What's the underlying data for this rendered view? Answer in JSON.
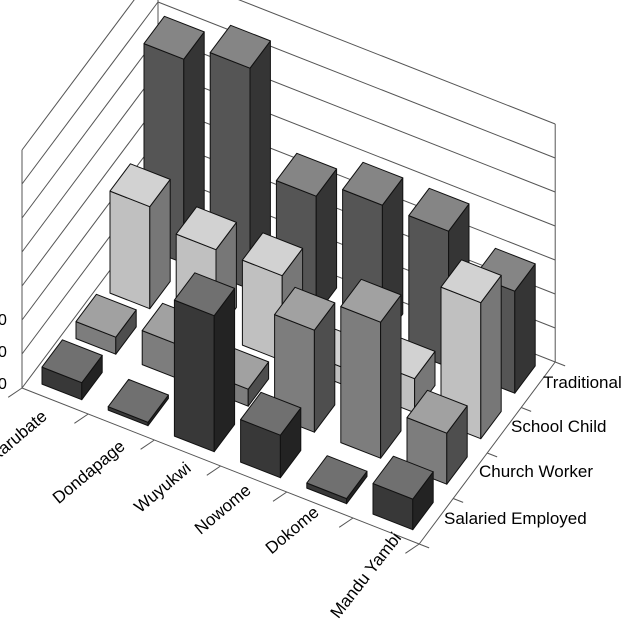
{
  "chart_data": {
    "type": "bar3d",
    "categories": [
      "Karubate",
      "Dondapage",
      "Wuyukwi",
      "Nowome",
      "Dokome",
      "Mandu Yambi"
    ],
    "series": [
      {
        "name": "Salaried Employed",
        "values": [
          1,
          0.2,
          8,
          2.5,
          0.3,
          1.8
        ],
        "color": "#383838"
      },
      {
        "name": "Church Worker",
        "values": [
          1,
          2,
          1,
          6,
          8,
          3
        ],
        "color": "#7d7d7d"
      },
      {
        "name": "School Child",
        "values": [
          6,
          5,
          5,
          1,
          2,
          8
        ],
        "color": "#c0c0c0"
      },
      {
        "name": "Traditional",
        "values": [
          12,
          13,
          7,
          8,
          8,
          6
        ],
        "color": "#555555"
      }
    ],
    "y_tick_labels": [
      "0",
      "0",
      "0"
    ],
    "grid": true
  }
}
